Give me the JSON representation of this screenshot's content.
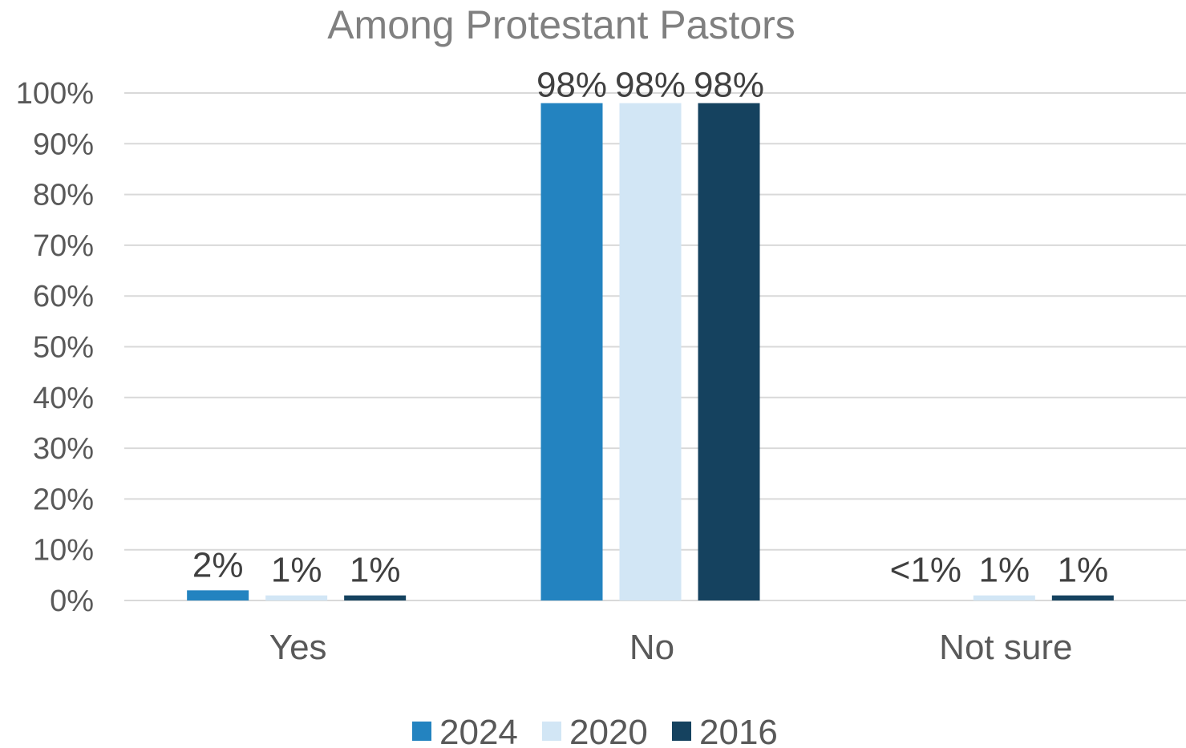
{
  "chart_data": {
    "type": "bar",
    "title": "Among Protestant Pastors",
    "categories": [
      "Yes",
      "No",
      "Not sure"
    ],
    "series": [
      {
        "name": "2024",
        "color": "#2383c0",
        "values": [
          2,
          98,
          0
        ],
        "labels": [
          "2%",
          "98%",
          "<1%"
        ]
      },
      {
        "name": "2020",
        "color": "#d2e6f5",
        "values": [
          1,
          98,
          1
        ],
        "labels": [
          "1%",
          "98%",
          "1%"
        ]
      },
      {
        "name": "2016",
        "color": "#15425f",
        "values": [
          1,
          98,
          1
        ],
        "labels": [
          "1%",
          "98%",
          "1%"
        ]
      }
    ],
    "yticks": [
      "0%",
      "10%",
      "20%",
      "30%",
      "40%",
      "50%",
      "60%",
      "70%",
      "80%",
      "90%",
      "100%"
    ],
    "ylim": [
      0,
      100
    ],
    "grid": true,
    "legend_position": "bottom"
  }
}
